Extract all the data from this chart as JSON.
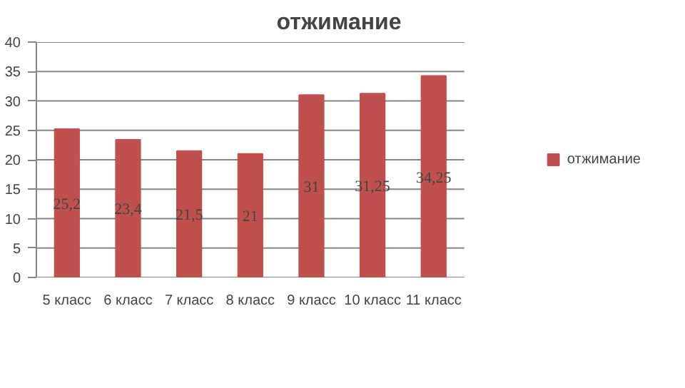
{
  "chart_data": {
    "type": "bar",
    "title": "отжимание",
    "categories": [
      "5 класс",
      "6 класс",
      "7 класс",
      "8 класс",
      "9 класс",
      "10 класс",
      "11 класс"
    ],
    "series": [
      {
        "name": "отжимание",
        "color": "#c0504d",
        "values": [
          25.2,
          23.4,
          21.5,
          21,
          31,
          31.25,
          34.25
        ],
        "value_labels": [
          "25,2",
          "23,4",
          "21,5",
          "21",
          "31",
          "31,25",
          "34,25"
        ]
      }
    ],
    "ylim": [
      0,
      40
    ],
    "yticks": [
      0,
      5,
      10,
      15,
      20,
      25,
      30,
      35,
      40
    ],
    "grid": "y",
    "legend": "right"
  }
}
